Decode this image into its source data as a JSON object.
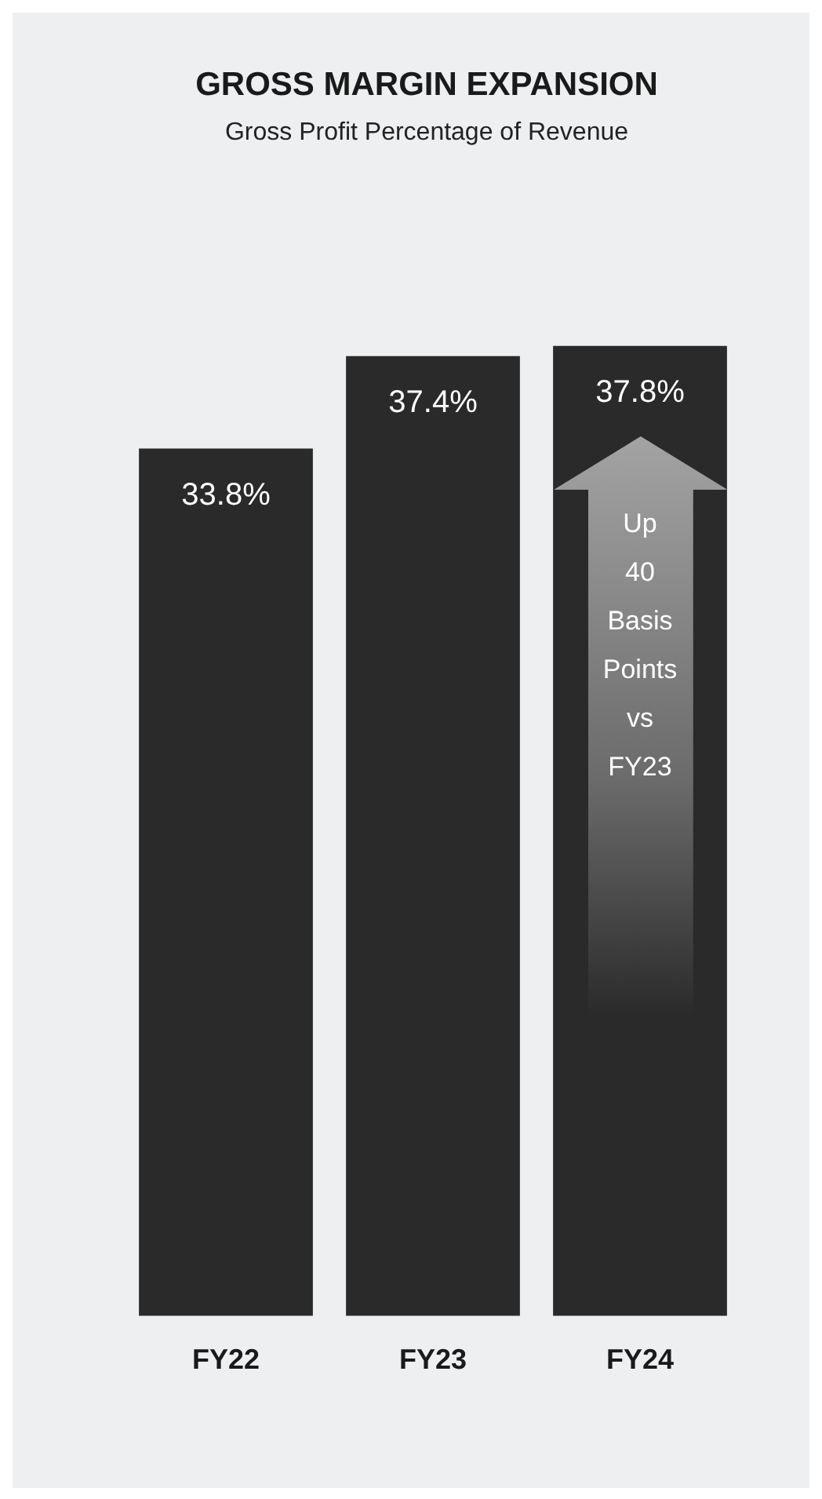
{
  "chart_data": {
    "type": "bar",
    "title": "GROSS MARGIN EXPANSION",
    "subtitle": "Gross Profit Percentage of Revenue",
    "categories": [
      "FY22",
      "FY23",
      "FY24"
    ],
    "values": [
      33.8,
      37.4,
      37.8
    ],
    "value_labels": [
      "33.8%",
      "37.4%",
      "37.8%"
    ],
    "color": "#2b2a2b",
    "annotations": [
      "Up 40 Basis Points vs FY23"
    ]
  }
}
